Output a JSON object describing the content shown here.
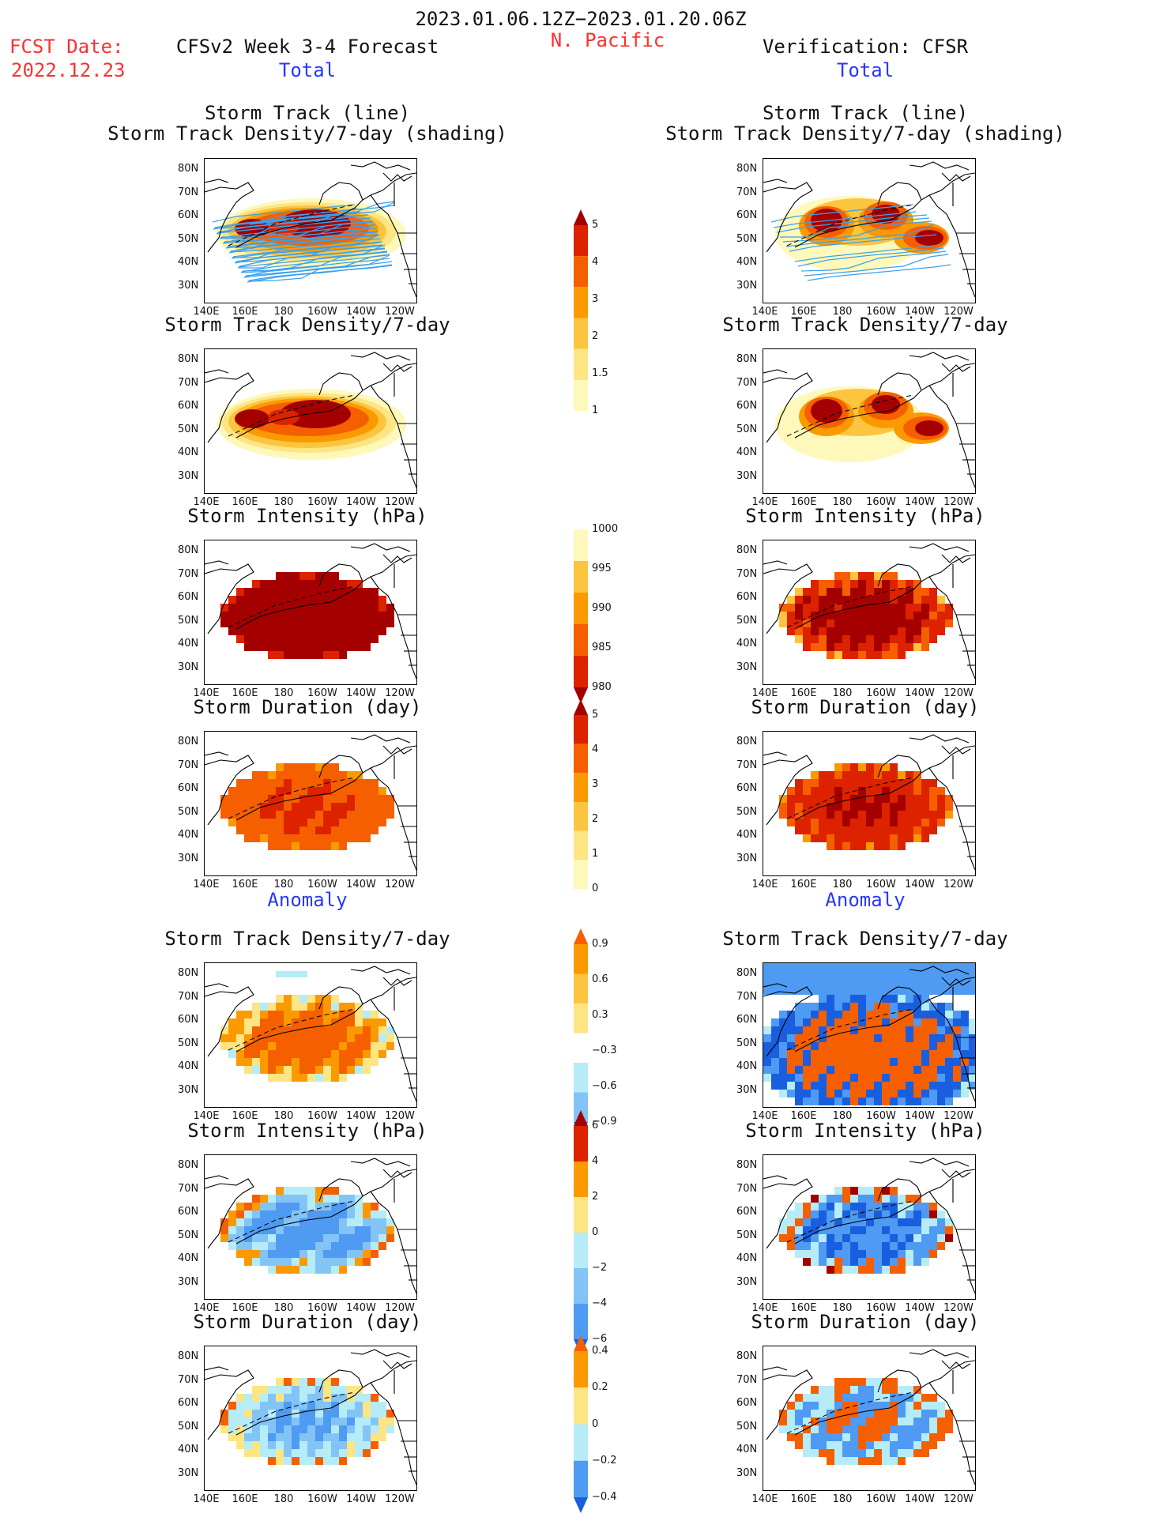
{
  "header": {
    "period": "2023.01.06.12Z−2023.01.20.06Z",
    "region": "N. Pacific",
    "fcst_label": "FCST Date:",
    "fcst_date": "2022.12.23",
    "left_title": "CFSv2 Week 3-4 Forecast",
    "right_title": "Verification: CFSR"
  },
  "sections": {
    "total": "Total",
    "anomaly": "Anomaly"
  },
  "panel_titles": {
    "track_line": "Storm Track (line)",
    "track_shading": "Storm Track Density/7-day (shading)",
    "density": "Storm Track Density/7-day",
    "intensity": "Storm Intensity (hPa)",
    "duration": "Storm Duration (day)"
  },
  "axes": {
    "lat_ticks": [
      "80N",
      "70N",
      "60N",
      "50N",
      "40N",
      "30N"
    ],
    "lon_ticks": [
      "140E",
      "160E",
      "180",
      "160W",
      "140W",
      "120W"
    ]
  },
  "colorbars": {
    "density_total": [
      "5",
      "4",
      "3",
      "2",
      "1.5",
      "1"
    ],
    "intensity_total": [
      "1000",
      "995",
      "990",
      "985",
      "980"
    ],
    "duration_total": [
      "5",
      "4",
      "3",
      "2",
      "1",
      "0"
    ],
    "density_anom": [
      "0.9",
      "0.6",
      "0.3",
      "−0.3",
      "−0.6",
      "−0.9"
    ],
    "intensity_anom": [
      "6",
      "4",
      "2",
      "0",
      "−2",
      "−4",
      "−6"
    ],
    "duration_anom": [
      "0.4",
      "0.2",
      "0",
      "−0.2",
      "−0.4"
    ]
  },
  "colors": {
    "dark_red": "#a50000",
    "red": "#dd2200",
    "orange_red": "#f55f00",
    "orange": "#fb9a00",
    "light_orange": "#fbc540",
    "yellow": "#fde583",
    "pale_yellow": "#fff8bb",
    "light_blue": "#b5ecf7",
    "mid_blue": "#83c4f7",
    "blue": "#4f9af2",
    "dark_blue": "#1a5ee0",
    "track_blue": "#3aa0ee"
  }
}
